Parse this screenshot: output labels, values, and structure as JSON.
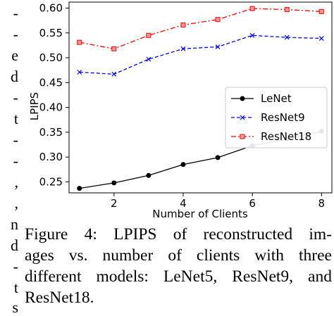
{
  "fragment_chars": [
    "-",
    "-",
    "e",
    "d",
    "-",
    "t",
    "-",
    "-",
    ",",
    ",",
    "n",
    "d",
    "-",
    "t",
    "s"
  ],
  "caption": "Figure 4: LPIPS of reconstructed images vs. number of clients with three different models: LeNet5, ResNet9, and ResNet18.",
  "caption_lines": [
    "Figure 4:  LPIPS of reconstructed im-",
    "ages vs.  number of clients with three",
    "different models: LeNet5, ResNet9, and",
    "ResNet18."
  ],
  "chart_data": {
    "type": "line",
    "title": "",
    "xlabel": "Number of Clients",
    "ylabel": "LPIPS",
    "x": [
      1,
      2,
      3,
      4,
      5,
      6,
      7,
      8
    ],
    "xticks": [
      2,
      4,
      6,
      8
    ],
    "yticks": [
      0.25,
      0.3,
      0.35,
      0.4,
      0.45,
      0.5,
      0.55,
      0.6
    ],
    "xlim": [
      0.7,
      8.3
    ],
    "ylim": [
      0.228,
      0.612
    ],
    "grid": false,
    "legend_position": "center-right",
    "series": [
      {
        "name": "LeNet",
        "color": "#000000",
        "marker": "circle",
        "linestyle": "solid",
        "values": [
          0.237,
          0.248,
          0.263,
          0.285,
          0.299,
          0.323,
          0.336,
          0.352
        ]
      },
      {
        "name": "ResNet9",
        "color": "#0000ff",
        "marker": "x",
        "linestyle": "dashed",
        "values": [
          0.471,
          0.467,
          0.497,
          0.518,
          0.522,
          0.545,
          0.541,
          0.539
        ]
      },
      {
        "name": "ResNet18",
        "color": "#ff0000",
        "marker": "square",
        "linestyle": "dashdot",
        "values": [
          0.531,
          0.518,
          0.545,
          0.566,
          0.577,
          0.599,
          0.597,
          0.593
        ]
      }
    ]
  }
}
